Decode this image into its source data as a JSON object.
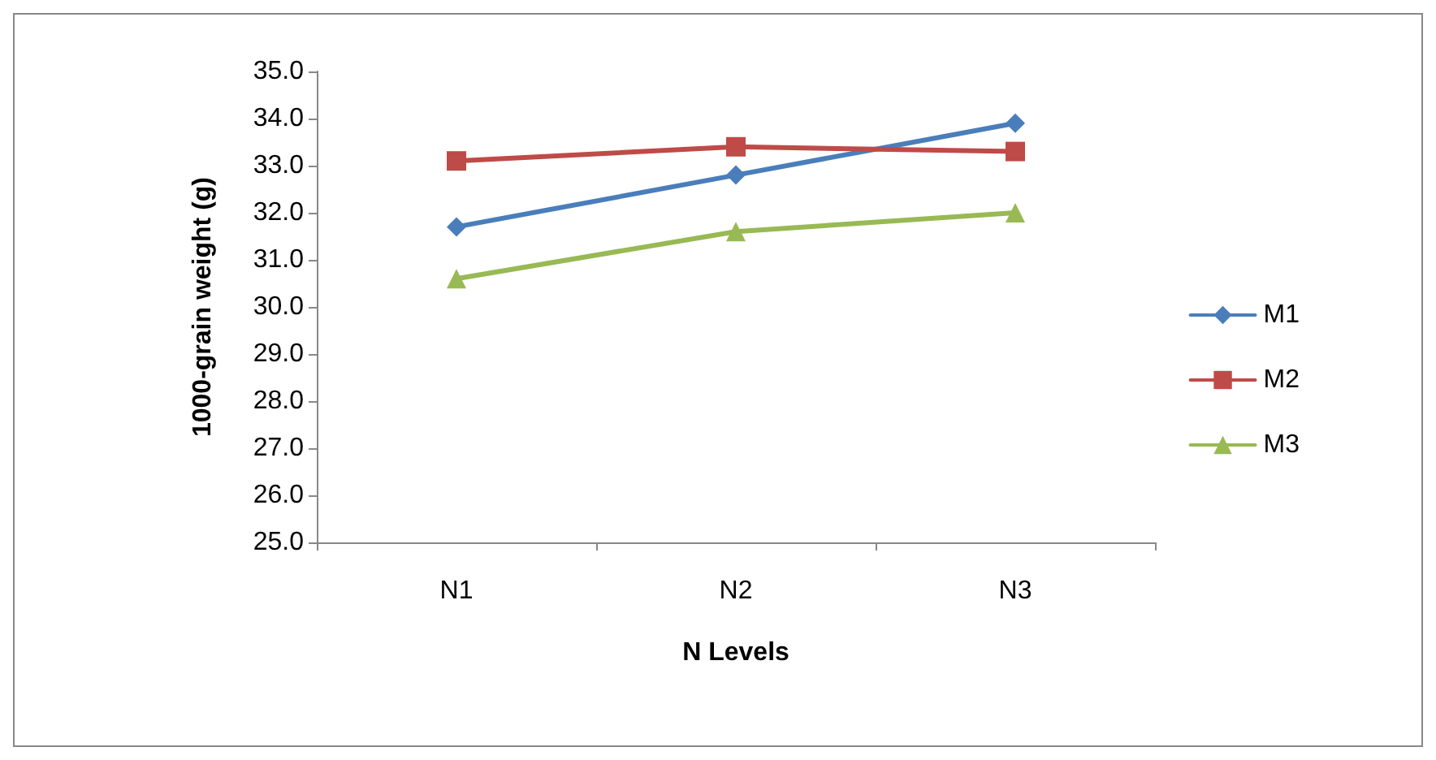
{
  "chart_data": {
    "type": "line",
    "xlabel": "N Levels",
    "ylabel": "1000-grain weight (g)",
    "categories": [
      "N1",
      "N2",
      "N3"
    ],
    "series": [
      {
        "name": "M1",
        "color": "#4a7ebb",
        "marker": "diamond",
        "values": [
          31.7,
          32.8,
          33.9
        ]
      },
      {
        "name": "M2",
        "color": "#be4b48",
        "marker": "square",
        "values": [
          33.1,
          33.4,
          33.3
        ]
      },
      {
        "name": "M3",
        "color": "#98b954",
        "marker": "triangle",
        "values": [
          30.6,
          31.6,
          32.0
        ]
      }
    ],
    "ylim": [
      25,
      35
    ],
    "yticks": [
      {
        "value": 25,
        "label": "25.0"
      },
      {
        "value": 26,
        "label": "26.0"
      },
      {
        "value": 27,
        "label": "27.0"
      },
      {
        "value": 28,
        "label": "28.0"
      },
      {
        "value": 29,
        "label": "29.0"
      },
      {
        "value": 30,
        "label": "30.0"
      },
      {
        "value": 31,
        "label": "31.0"
      },
      {
        "value": 32,
        "label": "32.0"
      },
      {
        "value": 33,
        "label": "33.0"
      },
      {
        "value": 34,
        "label": "34.0"
      },
      {
        "value": 35,
        "label": "35.0"
      }
    ],
    "grid": false,
    "legend": "right",
    "line_style": "solid"
  }
}
